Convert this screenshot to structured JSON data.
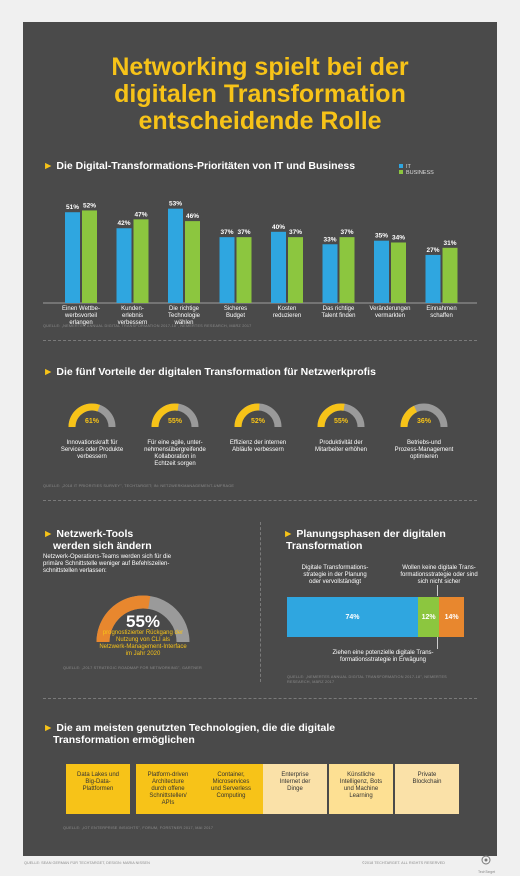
{
  "title_lines": [
    "Networking spielt bei der",
    "digitalen Transformation",
    "entscheidende Rolle"
  ],
  "colors": {
    "background": "#4a4a4a",
    "accent": "#f7c318",
    "it": "#2fa6e0",
    "business": "#8cc63f",
    "orange": "#e8872e",
    "gray": "#9a9a9a"
  },
  "section1": {
    "title": "Die Digital-Transformations-Prioritäten von IT und Business",
    "source": "QUELLE: „NEMERTES ANNUAL DIGITAL TRANSFORMATION 2017-18\", NEMERTES RESEARCH, MÄRZ 2017"
  },
  "chart_data": {
    "type": "bar",
    "categories": [
      "Einen Wettbe-werbsvorteil erlangen",
      "Kunden-erlebnis verbessern",
      "Die richtige Technologie wählen",
      "Sicheres Budget",
      "Kosten reduzieren",
      "Das richtige Talent finden",
      "Veränderungen vermarkten",
      "Einnahmen schaffen"
    ],
    "category_lines": [
      [
        "Einen Wettbe-",
        "werbsvorteil",
        "erlangen"
      ],
      [
        "Kunden-",
        "erlebnis",
        "verbessern"
      ],
      [
        "Die richtige",
        "Technologie",
        "wählen"
      ],
      [
        "Sicheres",
        "Budget"
      ],
      [
        "Kosten",
        "reduzieren"
      ],
      [
        "Das richtige",
        "Talent finden"
      ],
      [
        "Veränderungen",
        "vermarkten"
      ],
      [
        "Einnahmen",
        "schaffen"
      ]
    ],
    "series": [
      {
        "name": "IT",
        "values": [
          51,
          42,
          53,
          37,
          40,
          33,
          35,
          27
        ],
        "color": "#2fa6e0"
      },
      {
        "name": "BUSINESS",
        "values": [
          52,
          47,
          46,
          37,
          37,
          37,
          34,
          31
        ],
        "color": "#8cc63f"
      }
    ],
    "unit": "%",
    "ylim": [
      0,
      55
    ],
    "legend": "top-right"
  },
  "section2": {
    "title": "Die fünf Vorteile der digitalen Transformation für Netzwerkprofis",
    "source": "QUELLE: „2018 IT PRIORITIES SURVEY\", TECHTARGET; IN: NETZWERKMANAGEMENT-UMFRAGE",
    "gauges": [
      {
        "value": 61,
        "label": "61%",
        "text": [
          "Innovationskraft für",
          "Services oder Produkte",
          "verbessern"
        ]
      },
      {
        "value": 55,
        "label": "55%",
        "text": [
          "Für eine agile, unter-",
          "nehmensübergreifende",
          "Kollaboration in",
          "Echtzeit sorgen"
        ]
      },
      {
        "value": 52,
        "label": "52%",
        "text": [
          "Effizienz der internen",
          "Abläufe verbessern"
        ]
      },
      {
        "value": 55,
        "label": "55%",
        "text": [
          "Produktivität der",
          "Mitarbeiter erhöhen"
        ]
      },
      {
        "value": 36,
        "label": "36%",
        "text": [
          "Betriebs-und",
          "Prozess-Management",
          "optimieren"
        ]
      }
    ]
  },
  "section3": {
    "title_lines": [
      "Netzwerk-Tools",
      "werden sich ändern"
    ],
    "intro_lines": [
      "Netzwerk-Operations-Teams werden sich für die",
      "primäre Schnittstelle weniger auf Befehlszeilen-",
      "schnittstellen verlassen:"
    ],
    "gauge_value": 55,
    "gauge_label": "55%",
    "caption_lines": [
      "prognostizierter Rückgang der",
      "Nutzung von CLI als",
      "Netzwerk-Management-Interface",
      "im Jahr 2020"
    ],
    "source": "QUELLE: „2017 STRATEGIC ROADMAP FOR NETWORKING\", GARTNER"
  },
  "section4": {
    "title_lines": [
      "Planungsphasen der digitalen",
      "Transformation"
    ],
    "label_left": [
      "Digitale Transformations-",
      "strategie in der Planung",
      "oder vervollständigt"
    ],
    "label_right": [
      "Wollen keine digitale Trans-",
      "formationsstrategie oder sind",
      "sich nicht sicher"
    ],
    "segments": [
      {
        "value": 74,
        "label": "74%",
        "color": "#2fa6e0"
      },
      {
        "value": 12,
        "label": "12%",
        "color": "#8cc63f"
      },
      {
        "value": 14,
        "label": "14%",
        "color": "#e8872e"
      }
    ],
    "label_bottom": [
      "Ziehen eine potenzielle digitale Trans-",
      "formationsstrategie in Erwägung"
    ],
    "source_lines": [
      "QUELLE: „NEMERTES ANNUAL DIGITAL TRANSFORMATION 2017-18\", NEMERTES",
      "RESEARCH, MÄRZ 2017"
    ]
  },
  "section5": {
    "title_lines": [
      "Die am meisten genutzten Technologien, die die digitale",
      "Transformation ermöglichen"
    ],
    "items": [
      {
        "lines": [
          "Data Lakes und",
          "Big-Data-",
          "Plattformen"
        ]
      },
      {
        "lines": [
          "Platform-driven",
          "Architecture",
          "durch offene",
          "Schnittstellen/",
          "APIs"
        ]
      },
      {
        "lines": [
          "Container,",
          "Microservices",
          "und Serverless",
          "Computing"
        ]
      },
      {
        "lines": [
          "Enterprise",
          "Internet der",
          "Dinge"
        ]
      },
      {
        "lines": [
          "Künstliche",
          "Intelligenz, Bots",
          "und Machine",
          "Learning"
        ]
      },
      {
        "lines": [
          "Private",
          "Blockchain"
        ]
      }
    ],
    "source": "QUELLE: „IOT ENTERPRISE INSIGHTS\", FORUM, FORSTNER 2017, MAI 2017"
  },
  "footer": {
    "left": "QUELLE: SEAN GERMAN FÜR TECHTARGET, DESIGN: MARIA NISSEN",
    "right": "©2018 TECHTARGET. ALL RIGHTS RESERVED",
    "logo": "TechTarget"
  }
}
